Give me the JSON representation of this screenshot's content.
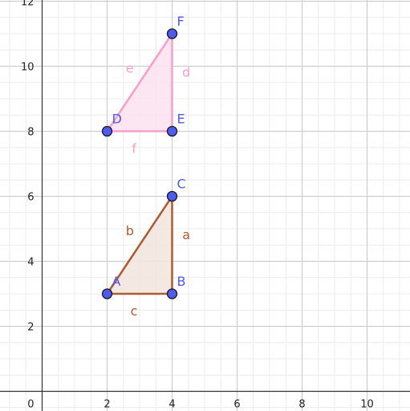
{
  "chart_data": {
    "type": "scatter",
    "title": "",
    "xlabel": "",
    "ylabel": "",
    "xlim": [
      -1.3,
      11.3
    ],
    "ylim": [
      -0.6,
      12.1
    ],
    "grid": true,
    "x_ticks": [
      {
        "value": 2,
        "label": "2"
      },
      {
        "value": 4,
        "label": "4"
      },
      {
        "value": 6,
        "label": "6"
      },
      {
        "value": 8,
        "label": "8"
      },
      {
        "value": 10,
        "label": "10"
      }
    ],
    "y_ticks": [
      {
        "value": 2,
        "label": "2"
      },
      {
        "value": 4,
        "label": "4"
      },
      {
        "value": 6,
        "label": "6"
      },
      {
        "value": 8,
        "label": "8"
      },
      {
        "value": 10,
        "label": "10"
      },
      {
        "value": 12,
        "label": "12"
      }
    ],
    "origin_label": "0",
    "point_color": "#4d5bf0",
    "figures": [
      {
        "color": "#b05a30",
        "fill": "#f3e6df",
        "points": [
          {
            "label": "A",
            "x": 2,
            "y": 3
          },
          {
            "label": "B",
            "x": 4,
            "y": 3
          },
          {
            "label": "C",
            "x": 4,
            "y": 6
          }
        ],
        "segments": [
          {
            "label": "a",
            "from": "B",
            "to": "C"
          },
          {
            "label": "b",
            "from": "A",
            "to": "C"
          },
          {
            "label": "c",
            "from": "A",
            "to": "B"
          }
        ]
      },
      {
        "color": "#f4a0c8",
        "fill": "#fbe3ef",
        "points": [
          {
            "label": "D",
            "x": 2,
            "y": 8
          },
          {
            "label": "E",
            "x": 4,
            "y": 8
          },
          {
            "label": "F",
            "x": 4,
            "y": 11
          }
        ],
        "segments": [
          {
            "label": "d",
            "from": "E",
            "to": "F"
          },
          {
            "label": "e",
            "from": "D",
            "to": "F"
          },
          {
            "label": "f",
            "from": "D",
            "to": "E"
          }
        ]
      }
    ]
  }
}
